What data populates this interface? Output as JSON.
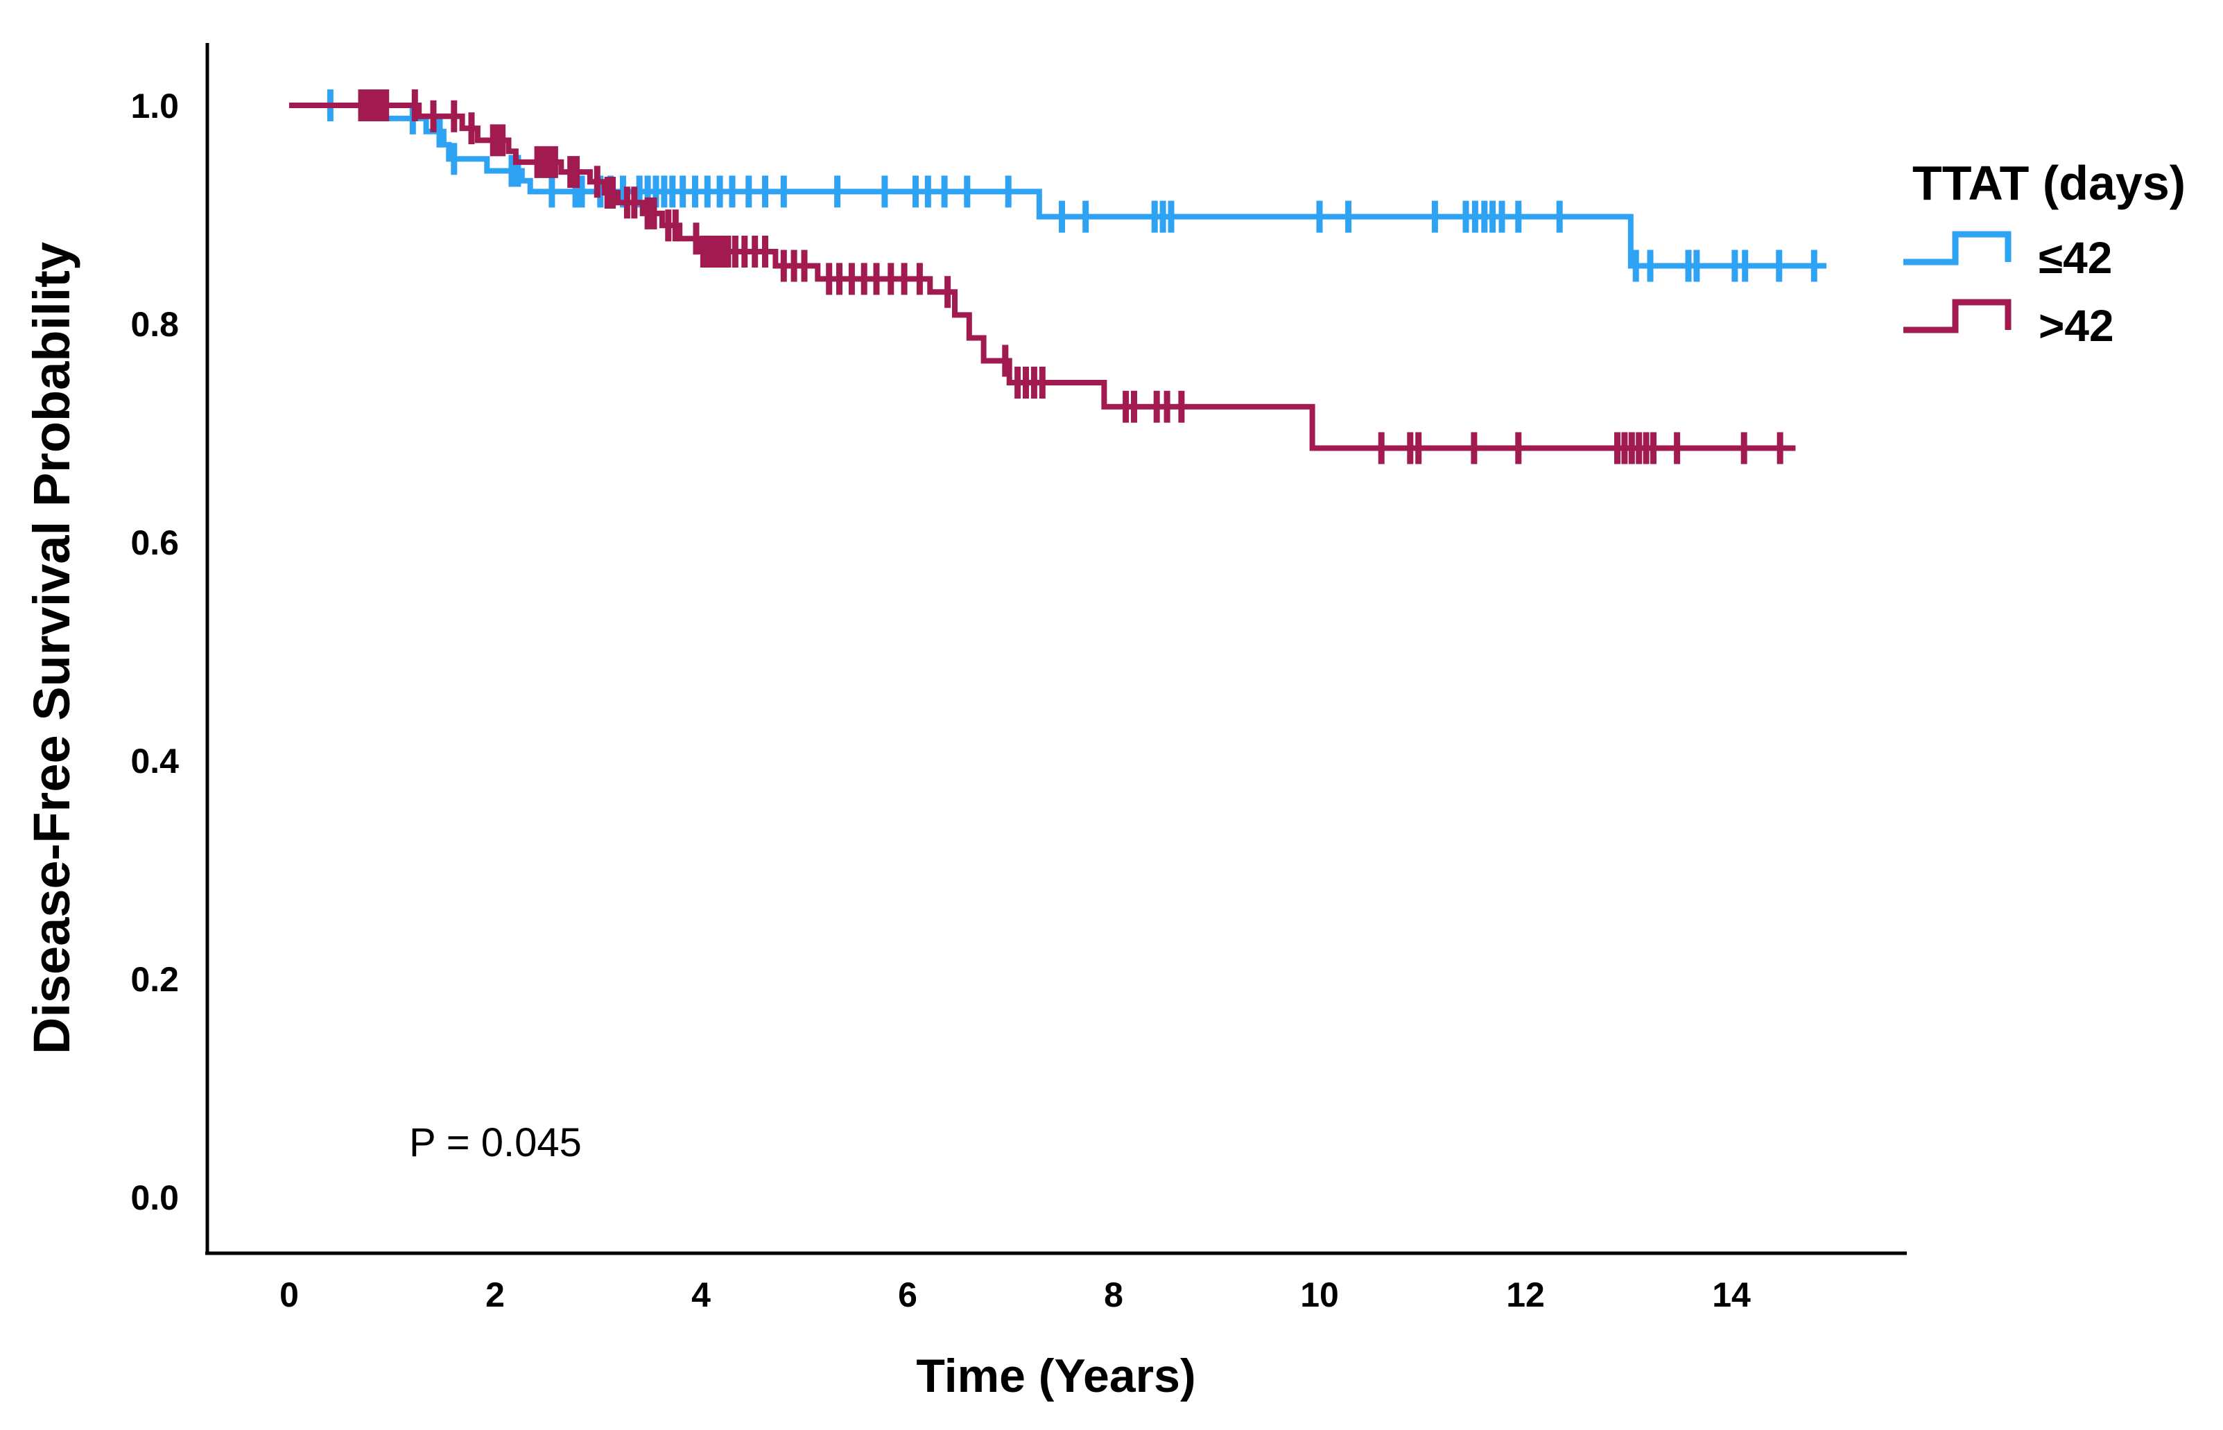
{
  "figure": {
    "p_value": "P = 0.045",
    "x_axis": {
      "title": "Time (Years)",
      "ticks": [
        "0",
        "2",
        "4",
        "6",
        "8",
        "10",
        "12",
        "14"
      ],
      "tick_values": [
        0,
        2,
        4,
        6,
        8,
        10,
        12,
        14
      ]
    },
    "y_axis": {
      "title": "Disease-Free Survival Probability",
      "ticks": [
        "1.0",
        "0.8",
        "0.6",
        "0.4",
        "0.2",
        "0.0"
      ],
      "tick_values": [
        1.0,
        0.8,
        0.6,
        0.4,
        0.2,
        0.0
      ]
    },
    "legend": {
      "title": "TTAT (days)",
      "entries": [
        {
          "label": "≤42",
          "color": "#2EA2F3"
        },
        {
          "label": ">42",
          "color": "#A11B51"
        }
      ]
    }
  },
  "chart_data": {
    "type": "line",
    "subtype": "kaplan_meier_step",
    "title": "",
    "xlabel": "Time (Years)",
    "ylabel": "Disease-Free Survival Probability",
    "xlim": [
      0,
      15.7
    ],
    "ylim": [
      -0.05,
      1.06
    ],
    "x_ticks": [
      0,
      2,
      4,
      6,
      8,
      10,
      12,
      14
    ],
    "y_ticks": [
      1.0,
      0.8,
      0.6,
      0.4,
      0.2,
      0.0
    ],
    "grid": false,
    "legend_position": "right",
    "legend_title": "TTAT (days)",
    "annotations": [
      {
        "text": "P = 0.045",
        "x": 1.2,
        "y": 0.04
      }
    ],
    "series": [
      {
        "name": "≤42",
        "color": "#2EA2F3",
        "steps": [
          [
            0,
            1.0
          ],
          [
            0.88,
            0.988
          ],
          [
            1.33,
            0.976
          ],
          [
            1.5,
            0.964
          ],
          [
            1.55,
            0.951
          ],
          [
            1.92,
            0.94
          ],
          [
            2.26,
            0.931
          ],
          [
            2.34,
            0.921
          ],
          [
            7.28,
            0.898
          ],
          [
            13.02,
            0.853
          ]
        ],
        "end_time": 14.92,
        "censors": [
          0.4,
          1.2,
          1.46,
          1.6,
          2.16,
          2.22,
          2.55,
          2.78,
          2.84,
          3.02,
          3.12,
          3.24,
          3.4,
          3.48,
          3.56,
          3.64,
          3.72,
          3.82,
          3.94,
          4.06,
          4.18,
          4.3,
          4.46,
          4.62,
          4.8,
          5.32,
          5.78,
          6.08,
          6.2,
          6.36,
          6.58,
          6.98,
          7.5,
          7.73,
          8.4,
          8.48,
          8.56,
          10.0,
          10.28,
          11.12,
          11.42,
          11.51,
          11.6,
          11.68,
          11.77,
          11.93,
          12.33,
          13.07,
          13.21,
          13.58,
          13.66,
          14.03,
          14.13,
          14.46,
          14.8
        ]
      },
      {
        "name": ">42",
        "color": "#A11B51",
        "steps": [
          [
            0,
            1.0
          ],
          [
            1.26,
            0.99
          ],
          [
            1.68,
            0.979
          ],
          [
            1.83,
            0.968
          ],
          [
            2.13,
            0.958
          ],
          [
            2.2,
            0.948
          ],
          [
            2.64,
            0.939
          ],
          [
            2.92,
            0.93
          ],
          [
            3.06,
            0.92
          ],
          [
            3.19,
            0.911
          ],
          [
            3.43,
            0.901
          ],
          [
            3.62,
            0.89
          ],
          [
            3.79,
            0.878
          ],
          [
            3.98,
            0.866
          ],
          [
            4.72,
            0.853
          ],
          [
            5.13,
            0.841
          ],
          [
            6.22,
            0.829
          ],
          [
            6.46,
            0.808
          ],
          [
            6.6,
            0.787
          ],
          [
            6.74,
            0.766
          ],
          [
            6.99,
            0.746
          ],
          [
            7.91,
            0.724
          ],
          [
            9.93,
            0.686
          ]
        ],
        "end_time": 14.62,
        "censors": [
          0.7,
          0.76,
          0.82,
          0.88,
          0.94,
          1.22,
          1.4,
          1.6,
          1.77,
          1.98,
          2.02,
          2.07,
          2.41,
          2.46,
          2.52,
          2.58,
          2.73,
          2.79,
          2.99,
          3.09,
          3.14,
          3.28,
          3.35,
          3.48,
          3.54,
          3.68,
          3.75,
          3.95,
          4.02,
          4.08,
          4.14,
          4.2,
          4.26,
          4.33,
          4.42,
          4.52,
          4.62,
          4.8,
          4.9,
          5.0,
          5.24,
          5.34,
          5.46,
          5.58,
          5.7,
          5.84,
          5.97,
          6.12,
          6.39,
          6.95,
          7.07,
          7.15,
          7.23,
          7.31,
          8.12,
          8.2,
          8.42,
          8.52,
          8.66,
          10.6,
          10.88,
          10.96,
          11.5,
          11.93,
          12.89,
          12.96,
          13.03,
          13.1,
          13.17,
          13.24,
          13.47,
          14.12,
          14.47
        ]
      }
    ]
  }
}
